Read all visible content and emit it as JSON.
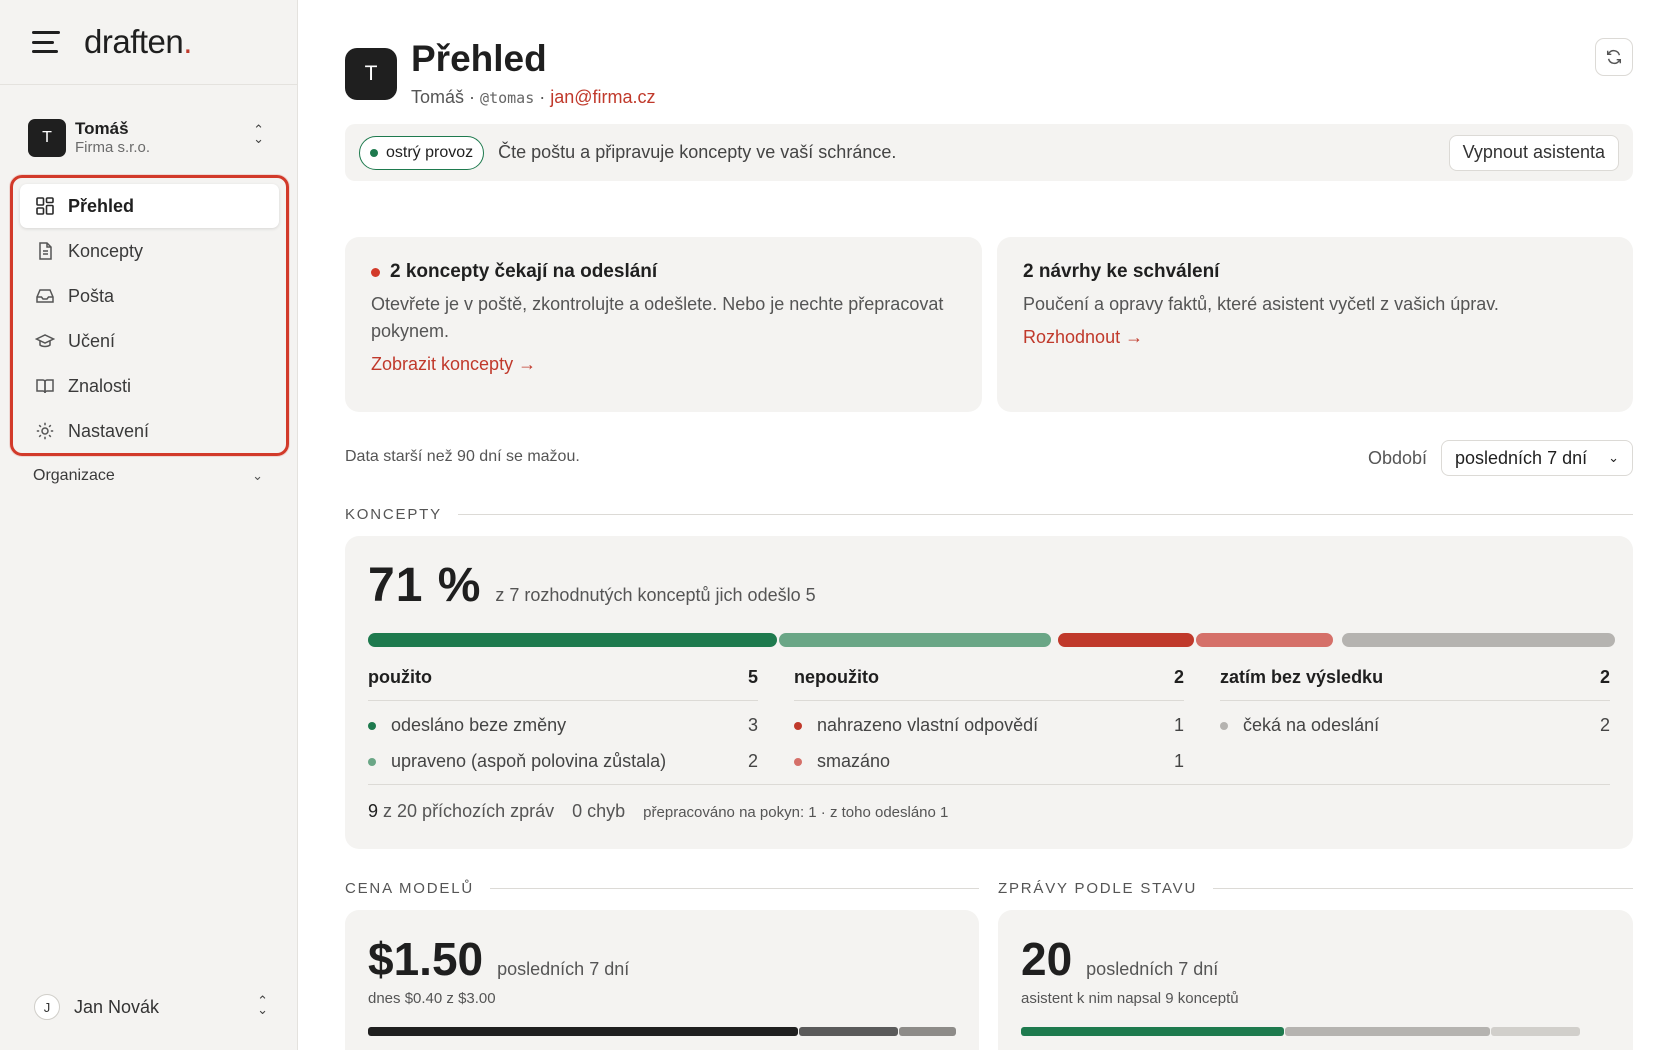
{
  "sidebar": {
    "logo_text": "draften",
    "logo_dot": ".",
    "account": {
      "initial": "T",
      "name": "Tomáš",
      "org": "Firma s.r.o."
    },
    "nav": [
      {
        "label": "Přehled",
        "icon": "dashboard-icon",
        "active": true
      },
      {
        "label": "Koncepty",
        "icon": "document-icon"
      },
      {
        "label": "Pošta",
        "icon": "inbox-icon"
      },
      {
        "label": "Učení",
        "icon": "graduation-cap-icon"
      },
      {
        "label": "Znalosti",
        "icon": "book-icon"
      },
      {
        "label": "Nastavení",
        "icon": "gear-icon"
      }
    ],
    "org_label": "Organizace",
    "user": {
      "initial": "J",
      "name": "Jan Novák"
    }
  },
  "header": {
    "initial": "T",
    "title": "Přehled",
    "name": "Tomáš",
    "sep": "·",
    "handle": "@tomas",
    "email": "jan@firma.cz"
  },
  "status": {
    "badge": "ostrý provoz",
    "text": "Čte poštu a připravuje koncepty ve vaší schránce.",
    "button": "Vypnout asistenta"
  },
  "cards": {
    "drafts": {
      "title": "2 koncepty čekají na odeslání",
      "body": "Otevřete je v poště, zkontrolujte a odešlete. Nebo je nechte přepracovat pokynem.",
      "link": "Zobrazit koncepty →"
    },
    "proposals": {
      "title": "2 návrhy ke schválení",
      "body": "Poučení a opravy faktů, které asistent vyčetl z vašich úprav.",
      "link": "Rozhodnout →"
    }
  },
  "retention": "Data starší než 90 dní se mažou.",
  "period": {
    "label": "Období",
    "value": "posledních 7 dní"
  },
  "koncepty": {
    "heading": "KONCEPTY",
    "percent": "71 %",
    "desc": "z 7 rozhodnutých konceptů jich odešlo 5",
    "groups": [
      {
        "title": "použito",
        "count": "5",
        "rows": [
          {
            "label": "odesláno beze změny",
            "count": "3",
            "color": "#1e7a4e"
          },
          {
            "label": "upraveno (aspoň polovina zůstala)",
            "count": "2",
            "color": "#6aa686"
          }
        ]
      },
      {
        "title": "nepoužito",
        "count": "2",
        "rows": [
          {
            "label": "nahrazeno vlastní odpovědí",
            "count": "1",
            "color": "#c0392b"
          },
          {
            "label": "smazáno",
            "count": "1",
            "color": "#d57069"
          }
        ]
      },
      {
        "title": "zatím bez výsledku",
        "count": "2",
        "rows": [
          {
            "label": "čeká na odeslání",
            "count": "2",
            "color": "#b5b3b0"
          }
        ]
      }
    ],
    "foot": {
      "incoming_count": "9",
      "incoming_text": "z 20 příchozích zpráv",
      "errors": "0 chyb",
      "reworked": "přepracováno na pokyn: 1 · z toho odesláno 1"
    }
  },
  "cost": {
    "heading": "CENA MODELŮ",
    "value": "$1.50",
    "period": "posledních 7 dní",
    "sub": "dnes $0.40 z $3.00"
  },
  "messages": {
    "heading": "ZPRÁVY PODLE STAVU",
    "value": "20",
    "period": "posledních 7 dní",
    "sub": "asistent k nim napsal 9 konceptů"
  }
}
